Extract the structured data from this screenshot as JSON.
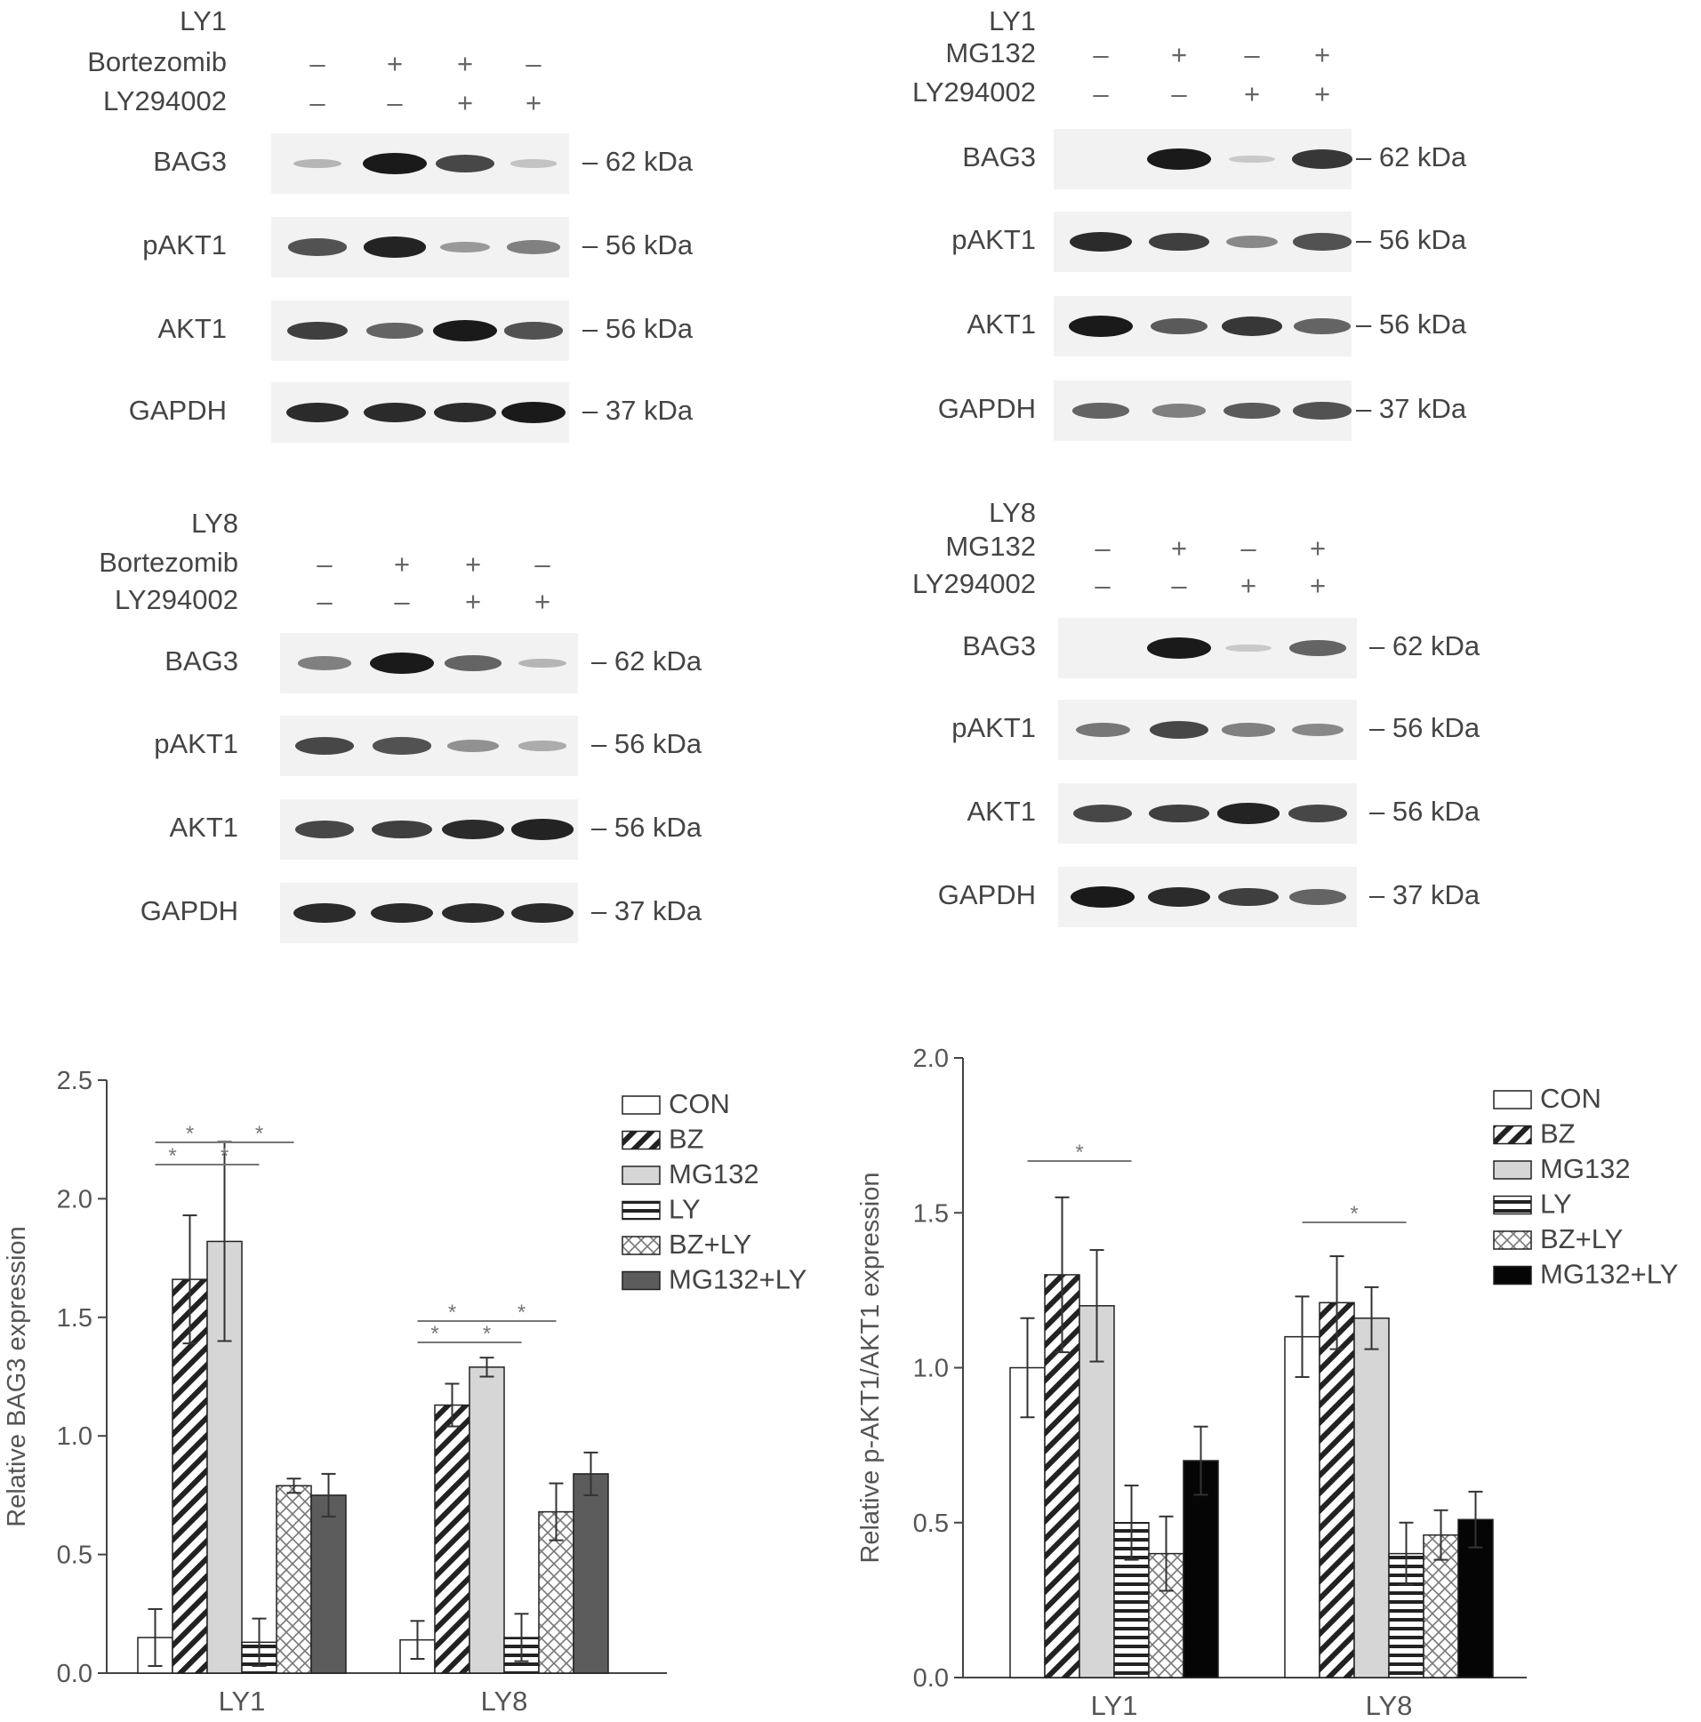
{
  "blots": [
    {
      "id": "ly1-bortezomib",
      "cell_line": "LY1",
      "treatments": [
        {
          "name": "Bortezomib",
          "signs": [
            "–",
            "+",
            "+",
            "–"
          ]
        },
        {
          "name": "LY294002",
          "signs": [
            "–",
            "–",
            "+",
            "+"
          ]
        }
      ],
      "rows": [
        {
          "protein": "BAG3",
          "kda": "– 62 kDa",
          "intensity": [
            0.15,
            1.0,
            0.75,
            0.08
          ]
        },
        {
          "protein": "pAKT1",
          "kda": "– 56 kDa",
          "intensity": [
            0.7,
            0.95,
            0.3,
            0.45
          ]
        },
        {
          "protein": "AKT1",
          "kda": "– 56 kDa",
          "intensity": [
            0.8,
            0.6,
            1.0,
            0.7
          ]
        },
        {
          "protein": "GAPDH",
          "kda": "– 37 kDa",
          "intensity": [
            0.9,
            0.9,
            0.9,
            1.0
          ]
        }
      ]
    },
    {
      "id": "ly1-mg132",
      "cell_line": "LY1",
      "treatments": [
        {
          "name": "MG132",
          "signs": [
            "–",
            "+",
            "–",
            "+"
          ]
        },
        {
          "name": "LY294002",
          "signs": [
            "–",
            "–",
            "+",
            "+"
          ]
        }
      ],
      "rows": [
        {
          "protein": "BAG3",
          "kda": "– 62 kDa",
          "intensity": [
            0.0,
            1.0,
            0.05,
            0.85
          ]
        },
        {
          "protein": "pAKT1",
          "kda": "– 56 kDa",
          "intensity": [
            0.9,
            0.8,
            0.4,
            0.7
          ]
        },
        {
          "protein": "AKT1",
          "kda": "– 56 kDa",
          "intensity": [
            1.0,
            0.65,
            0.85,
            0.6
          ]
        },
        {
          "protein": "GAPDH",
          "kda": "– 37 kDa",
          "intensity": [
            0.6,
            0.45,
            0.65,
            0.7
          ]
        }
      ]
    },
    {
      "id": "ly8-bortezomib",
      "cell_line": "LY8",
      "treatments": [
        {
          "name": "Bortezomib",
          "signs": [
            "–",
            "+",
            "+",
            "–"
          ]
        },
        {
          "name": "LY294002",
          "signs": [
            "–",
            "–",
            "+",
            "+"
          ]
        }
      ],
      "rows": [
        {
          "protein": "BAG3",
          "kda": "– 62 kDa",
          "intensity": [
            0.45,
            1.0,
            0.6,
            0.15
          ]
        },
        {
          "protein": "pAKT1",
          "kda": "– 56 kDa",
          "intensity": [
            0.75,
            0.7,
            0.35,
            0.2
          ]
        },
        {
          "protein": "AKT1",
          "kda": "– 56 kDa",
          "intensity": [
            0.75,
            0.8,
            0.9,
            0.95
          ]
        },
        {
          "protein": "GAPDH",
          "kda": "– 37 kDa",
          "intensity": [
            0.9,
            0.9,
            0.9,
            0.9
          ]
        }
      ]
    },
    {
      "id": "ly8-mg132",
      "cell_line": "LY8",
      "treatments": [
        {
          "name": "MG132",
          "signs": [
            "–",
            "+",
            "–",
            "+"
          ]
        },
        {
          "name": "LY294002",
          "signs": [
            "–",
            "–",
            "+",
            "+"
          ]
        }
      ],
      "rows": [
        {
          "protein": "BAG3",
          "kda": "– 62 kDa",
          "intensity": [
            0.0,
            1.0,
            0.05,
            0.6
          ]
        },
        {
          "protein": "pAKT1",
          "kda": "– 56 kDa",
          "intensity": [
            0.5,
            0.75,
            0.45,
            0.4
          ]
        },
        {
          "protein": "AKT1",
          "kda": "– 56 kDa",
          "intensity": [
            0.75,
            0.8,
            0.95,
            0.75
          ]
        },
        {
          "protein": "GAPDH",
          "kda": "– 37 kDa",
          "intensity": [
            1.0,
            0.9,
            0.8,
            0.6
          ]
        }
      ]
    }
  ],
  "chart_data": [
    {
      "type": "bar",
      "title": "",
      "xlabel": "",
      "ylabel": "Relative BAG3 expression",
      "ylim": [
        0,
        2.5
      ],
      "yticks": [
        "0.0",
        "0.5",
        "1.0",
        "1.5",
        "2.0",
        "2.5"
      ],
      "categories": [
        "LY1",
        "LY8"
      ],
      "legend_position": "top-right",
      "series": [
        {
          "name": "CON",
          "values": [
            0.15,
            0.14
          ],
          "errors": [
            0.12,
            0.08
          ],
          "pattern": "open"
        },
        {
          "name": "BZ",
          "values": [
            1.66,
            1.13
          ],
          "errors": [
            0.27,
            0.09
          ],
          "pattern": "diagonal"
        },
        {
          "name": "MG132",
          "values": [
            1.82,
            1.29
          ],
          "errors": [
            0.42,
            0.04
          ],
          "pattern": "light-gray"
        },
        {
          "name": "LY",
          "values": [
            0.13,
            0.15
          ],
          "errors": [
            0.1,
            0.1
          ],
          "pattern": "horizontal"
        },
        {
          "name": "BZ+LY",
          "values": [
            0.79,
            0.68
          ],
          "errors": [
            0.03,
            0.12
          ],
          "pattern": "crosshatch"
        },
        {
          "name": "MG132+LY",
          "values": [
            0.75,
            0.84
          ],
          "errors": [
            0.09,
            0.09
          ],
          "pattern": "dark-gray"
        }
      ],
      "significance": "*"
    },
    {
      "type": "bar",
      "title": "",
      "xlabel": "",
      "ylabel": "Relative p-AKT1/AKT1 expression",
      "ylim": [
        0,
        2.0
      ],
      "yticks": [
        "0.0",
        "0.5",
        "1.0",
        "1.5",
        "2.0"
      ],
      "categories": [
        "LY1",
        "LY8"
      ],
      "legend_position": "top-right",
      "series": [
        {
          "name": "CON",
          "values": [
            1.0,
            1.1
          ],
          "errors": [
            0.16,
            0.13
          ],
          "pattern": "open"
        },
        {
          "name": "BZ",
          "values": [
            1.3,
            1.21
          ],
          "errors": [
            0.25,
            0.15
          ],
          "pattern": "diagonal"
        },
        {
          "name": "MG132",
          "values": [
            1.2,
            1.16
          ],
          "errors": [
            0.18,
            0.1
          ],
          "pattern": "light-gray"
        },
        {
          "name": "LY",
          "values": [
            0.5,
            0.4
          ],
          "errors": [
            0.12,
            0.1
          ],
          "pattern": "horizontal"
        },
        {
          "name": "BZ+LY",
          "values": [
            0.4,
            0.46
          ],
          "errors": [
            0.12,
            0.08
          ],
          "pattern": "crosshatch"
        },
        {
          "name": "MG132+LY",
          "values": [
            0.7,
            0.51
          ],
          "errors": [
            0.11,
            0.09
          ],
          "pattern": "black"
        }
      ],
      "significance": "*"
    }
  ],
  "colors": {
    "axis": "#444444",
    "text": "#444444",
    "band": "#141414",
    "blot_bg": "#f1f1f1"
  }
}
